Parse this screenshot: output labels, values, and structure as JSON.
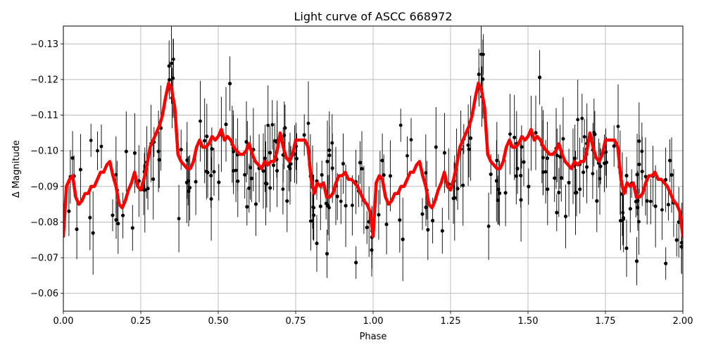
{
  "chart_data": {
    "type": "scatter",
    "title": "Light curve of ASCC 668972",
    "xlabel": "Phase",
    "ylabel": "Δ Magnitude",
    "xlim": [
      0.0,
      2.0
    ],
    "ylim": [
      -0.055,
      -0.135
    ],
    "y_inverted": true,
    "grid": true,
    "x_ticks": [
      0.0,
      0.25,
      0.5,
      0.75,
      1.0,
      1.25,
      1.5,
      1.75,
      2.0
    ],
    "x_tick_labels": [
      "0.00",
      "0.25",
      "0.50",
      "0.75",
      "1.00",
      "1.25",
      "1.50",
      "1.75",
      "2.00"
    ],
    "y_ticks": [
      -0.06,
      -0.07,
      -0.08,
      -0.09,
      -0.1,
      -0.11,
      -0.12,
      -0.13
    ],
    "y_tick_labels": [
      "−0.06",
      "−0.07",
      "−0.08",
      "−0.09",
      "−0.10",
      "−0.11",
      "−0.12",
      "−0.13"
    ],
    "series": [
      {
        "kind": "errorbar-scatter",
        "color": "#000000",
        "scatter_sigma": 0.013,
        "errorbar_half_length": 0.008,
        "points_per_cycle": 520
      },
      {
        "kind": "binned-line",
        "color": "#ff0000",
        "x": [
          0.0,
          0.01,
          0.02,
          0.03,
          0.04,
          0.05,
          0.06,
          0.07,
          0.08,
          0.09,
          0.1,
          0.11,
          0.12,
          0.13,
          0.14,
          0.15,
          0.16,
          0.17,
          0.18,
          0.19,
          0.2,
          0.21,
          0.22,
          0.23,
          0.24,
          0.25,
          0.26,
          0.27,
          0.28,
          0.29,
          0.3,
          0.31,
          0.32,
          0.33,
          0.34,
          0.35,
          0.36,
          0.37,
          0.38,
          0.39,
          0.4,
          0.41,
          0.42,
          0.43,
          0.44,
          0.45,
          0.46,
          0.47,
          0.48,
          0.49,
          0.5,
          0.51,
          0.52,
          0.53,
          0.54,
          0.55,
          0.56,
          0.57,
          0.58,
          0.59,
          0.6,
          0.61,
          0.62,
          0.63,
          0.64,
          0.65,
          0.66,
          0.67,
          0.68,
          0.69,
          0.7,
          0.71,
          0.72,
          0.73,
          0.74,
          0.75,
          0.76,
          0.77,
          0.78,
          0.79,
          0.8,
          0.81,
          0.82,
          0.83,
          0.84,
          0.85,
          0.86,
          0.87,
          0.88,
          0.89,
          0.9,
          0.91,
          0.92,
          0.93,
          0.94,
          0.95,
          0.96,
          0.97,
          0.98,
          0.99,
          1.0,
          1.01,
          1.02,
          1.03,
          1.04,
          1.05,
          1.06,
          1.07,
          1.08,
          1.09,
          1.1,
          1.11,
          1.12,
          1.13,
          1.14,
          1.15,
          1.16,
          1.17,
          1.18,
          1.19,
          1.2,
          1.21,
          1.22,
          1.23,
          1.24,
          1.25,
          1.26,
          1.27,
          1.28,
          1.29,
          1.3,
          1.31,
          1.32,
          1.33,
          1.34,
          1.35,
          1.36,
          1.37,
          1.38,
          1.39,
          1.4,
          1.41,
          1.42,
          1.43,
          1.44,
          1.45,
          1.46,
          1.47,
          1.48,
          1.49,
          1.5,
          1.51,
          1.52,
          1.53,
          1.54,
          1.55,
          1.56,
          1.57,
          1.58,
          1.59,
          1.6,
          1.61,
          1.62,
          1.63,
          1.64,
          1.65,
          1.66,
          1.67,
          1.68,
          1.69,
          1.7,
          1.71,
          1.72,
          1.73,
          1.74,
          1.75,
          1.76,
          1.77,
          1.78,
          1.79,
          1.8,
          1.81,
          1.82,
          1.83,
          1.84,
          1.85,
          1.86,
          1.87,
          1.88,
          1.89,
          1.9,
          1.91,
          1.92,
          1.93,
          1.94,
          1.95,
          1.96,
          1.97,
          1.98,
          1.99,
          2.0
        ],
        "y": [
          -0.076,
          -0.09,
          -0.092,
          -0.093,
          -0.087,
          -0.085,
          -0.086,
          -0.088,
          -0.088,
          -0.09,
          -0.09,
          -0.092,
          -0.094,
          -0.094,
          -0.096,
          -0.097,
          -0.093,
          -0.09,
          -0.085,
          -0.084,
          -0.086,
          -0.089,
          -0.091,
          -0.094,
          -0.09,
          -0.089,
          -0.092,
          -0.096,
          -0.101,
          -0.103,
          -0.105,
          -0.107,
          -0.11,
          -0.115,
          -0.119,
          -0.117,
          -0.112,
          -0.099,
          -0.097,
          -0.096,
          -0.095,
          -0.095,
          -0.097,
          -0.101,
          -0.103,
          -0.101,
          -0.101,
          -0.102,
          -0.104,
          -0.103,
          -0.104,
          -0.106,
          -0.103,
          -0.104,
          -0.103,
          -0.101,
          -0.1,
          -0.099,
          -0.099,
          -0.1,
          -0.102,
          -0.099,
          -0.097,
          -0.096,
          -0.095,
          -0.097,
          -0.096,
          -0.097,
          -0.097,
          -0.1,
          -0.105,
          -0.101,
          -0.098,
          -0.097,
          -0.099,
          -0.103,
          -0.103,
          -0.103,
          -0.103,
          -0.101,
          -0.092,
          -0.088,
          -0.091,
          -0.09,
          -0.091,
          -0.087,
          -0.087,
          -0.088,
          -0.091,
          -0.093,
          -0.093,
          -0.094,
          -0.092,
          -0.092,
          -0.091,
          -0.09,
          -0.088,
          -0.086,
          -0.085,
          -0.083,
          -0.076,
          -0.091,
          -0.093,
          -0.092,
          -0.087,
          -0.085,
          -0.086,
          -0.088,
          -0.088,
          -0.09,
          -0.09,
          -0.092,
          -0.094,
          -0.094,
          -0.096,
          -0.097,
          -0.093,
          -0.09,
          -0.085,
          -0.084,
          -0.086,
          -0.089,
          -0.091,
          -0.094,
          -0.09,
          -0.089,
          -0.092,
          -0.096,
          -0.101,
          -0.103,
          -0.105,
          -0.107,
          -0.11,
          -0.115,
          -0.119,
          -0.117,
          -0.112,
          -0.099,
          -0.097,
          -0.096,
          -0.095,
          -0.095,
          -0.097,
          -0.101,
          -0.103,
          -0.101,
          -0.101,
          -0.102,
          -0.104,
          -0.103,
          -0.104,
          -0.106,
          -0.103,
          -0.104,
          -0.103,
          -0.101,
          -0.1,
          -0.099,
          -0.099,
          -0.1,
          -0.102,
          -0.099,
          -0.097,
          -0.096,
          -0.095,
          -0.097,
          -0.096,
          -0.097,
          -0.097,
          -0.1,
          -0.105,
          -0.101,
          -0.098,
          -0.097,
          -0.099,
          -0.103,
          -0.103,
          -0.103,
          -0.103,
          -0.101,
          -0.092,
          -0.088,
          -0.091,
          -0.09,
          -0.091,
          -0.087,
          -0.087,
          -0.088,
          -0.091,
          -0.093,
          -0.093,
          -0.094,
          -0.092,
          -0.092,
          -0.091,
          -0.09,
          -0.088,
          -0.086,
          -0.085,
          -0.083,
          -0.076
        ]
      }
    ]
  }
}
